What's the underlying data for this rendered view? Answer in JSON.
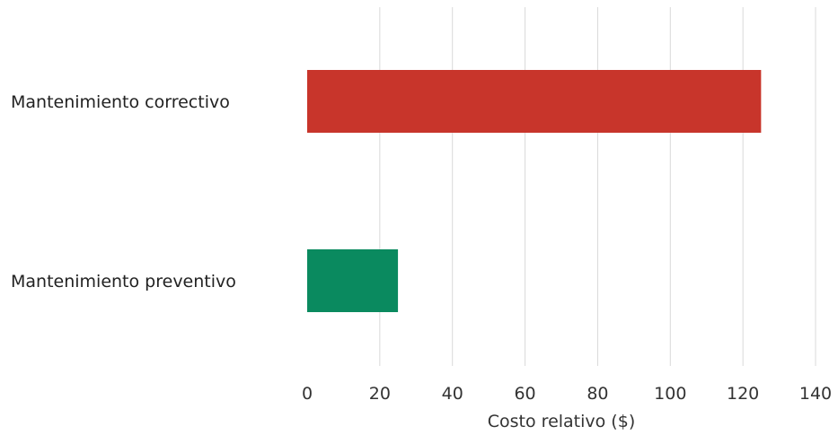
{
  "chart_data": {
    "type": "bar",
    "orientation": "horizontal",
    "categories": [
      "Mantenimiento correctivo",
      "Mantenimiento preventivo"
    ],
    "values": [
      125,
      25
    ],
    "colors": [
      "#c8352b",
      "#0a8a5f"
    ],
    "title": "",
    "xlabel": "Costo relativo ($)",
    "ylabel": "",
    "xlim": [
      0,
      140
    ],
    "xticks": [
      "0",
      "20",
      "40",
      "60",
      "80",
      "100",
      "120",
      "140"
    ],
    "grid": "vertical",
    "legend": "none"
  }
}
